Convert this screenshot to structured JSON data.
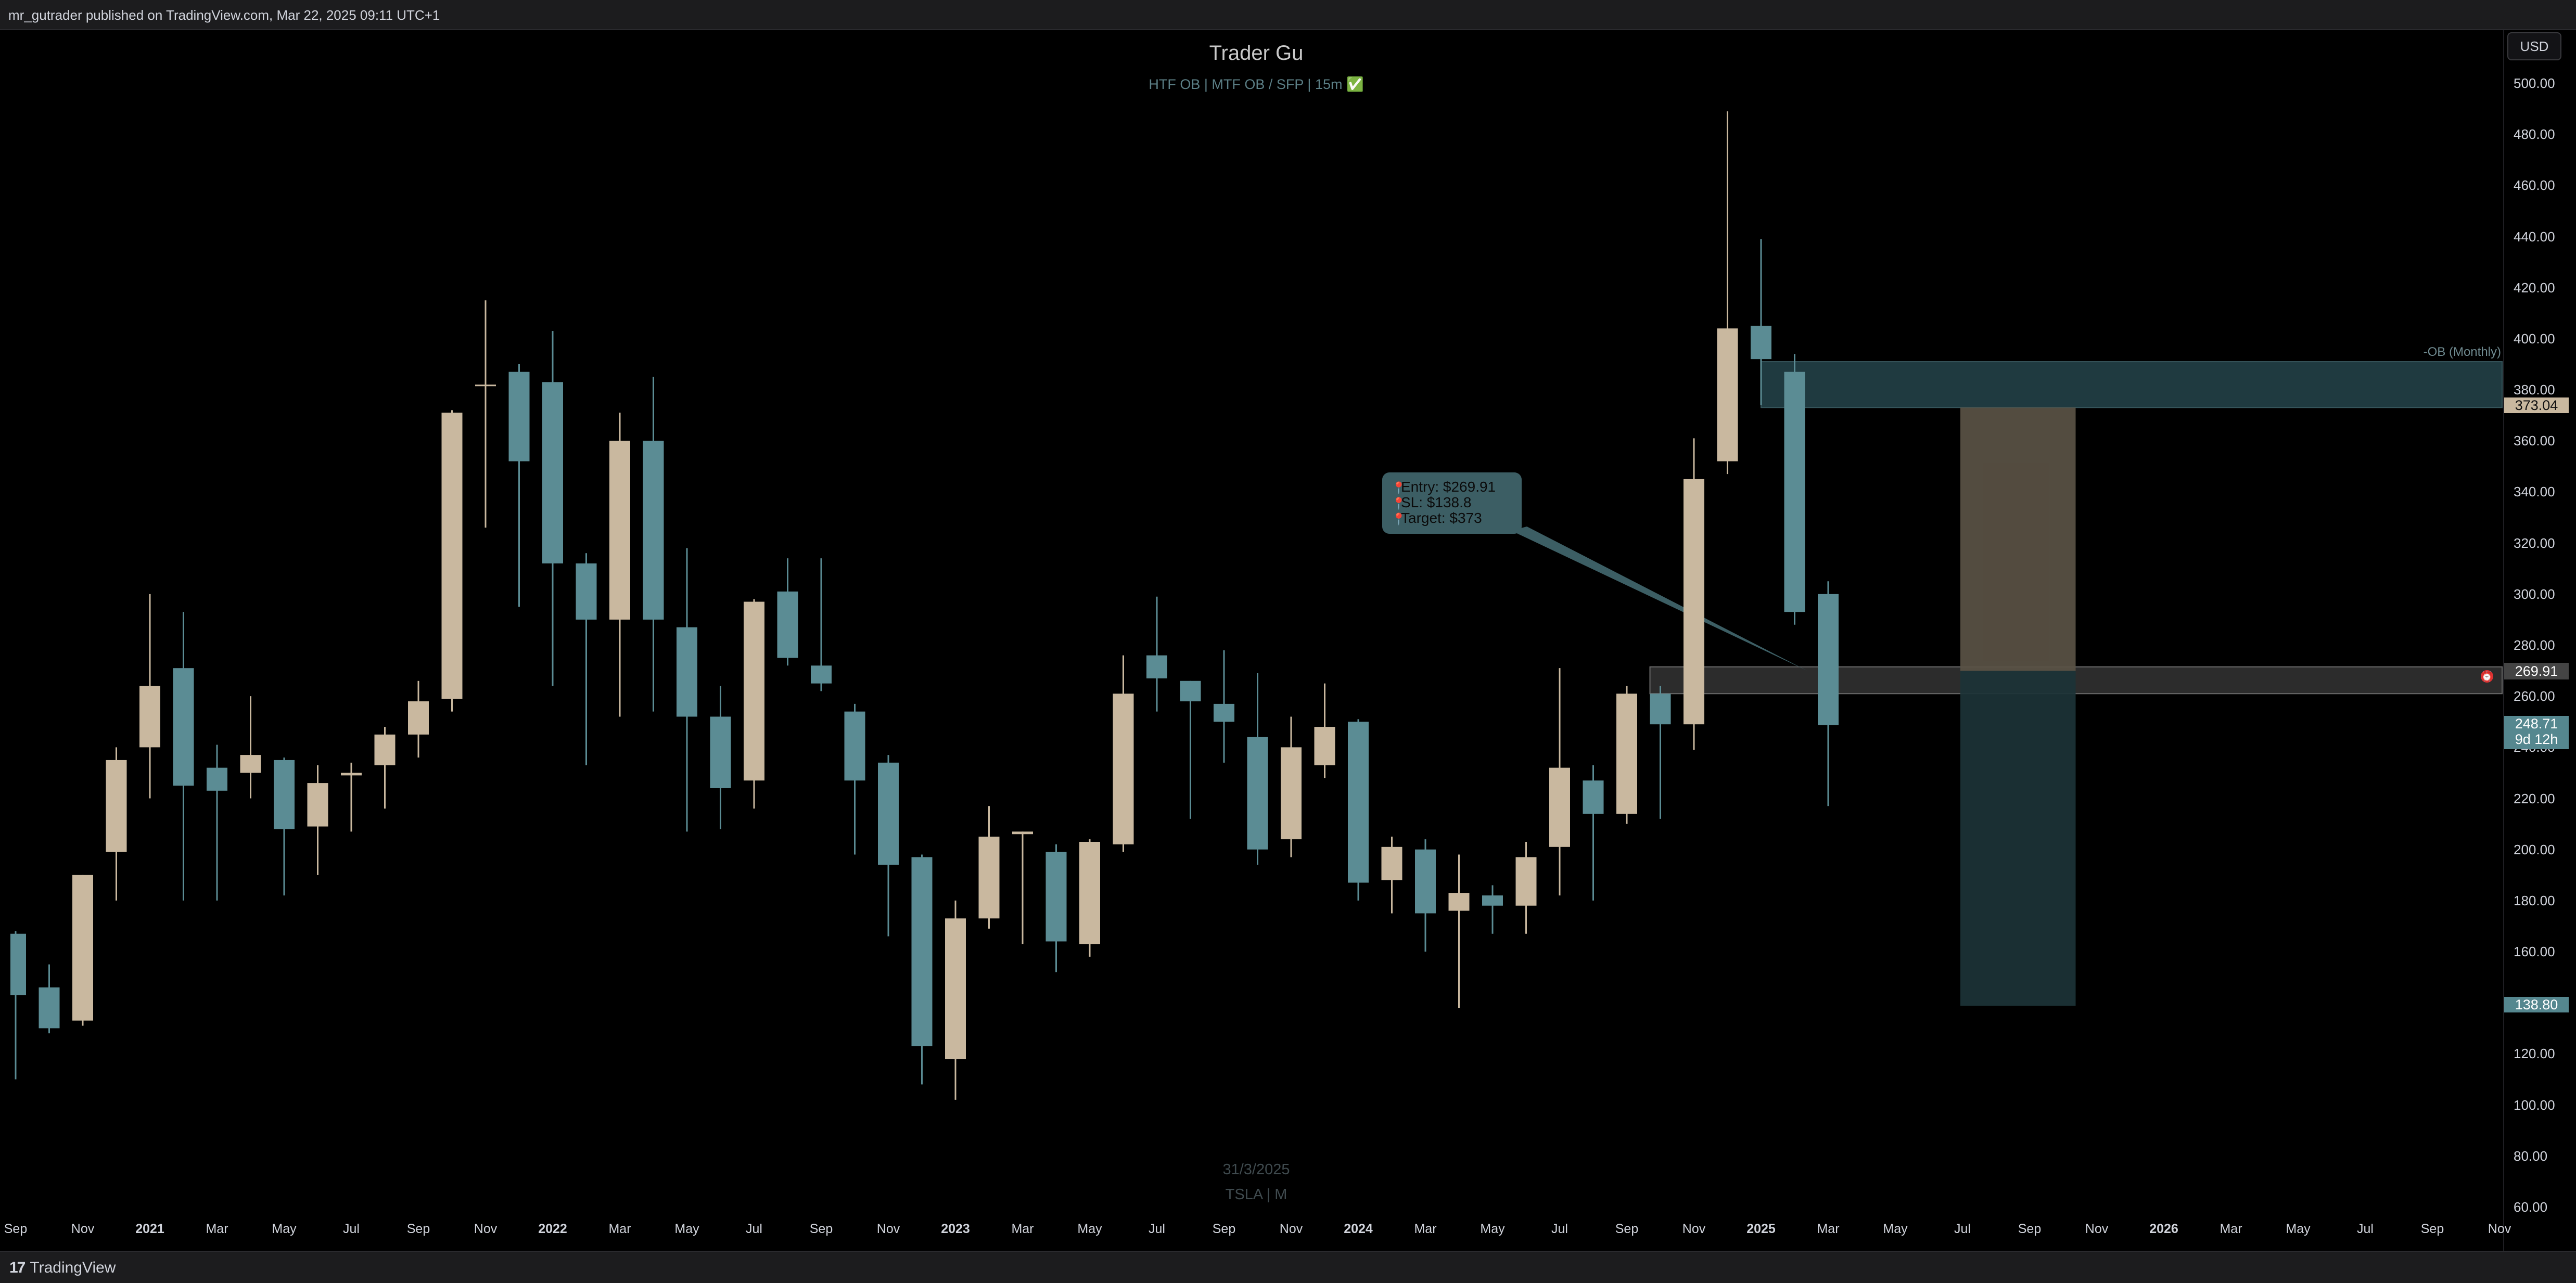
{
  "header": {
    "publisher_text": "mr_gutrader published on TradingView.com, Mar 22, 2025 09:11 UTC+1"
  },
  "footer": {
    "brand": "TradingView",
    "brand_mark": "17"
  },
  "currency_button": "USD",
  "chart_data": {
    "type": "candlestick",
    "title": "Trader Gu",
    "subtitle": "HTF OB  |  MTF OB / SFP  |  15m ✅",
    "symbol_watermark": "TSLA | M",
    "date_watermark": "31/3/2025",
    "price_axis": {
      "ticks": [
        "500.00",
        "480.00",
        "460.00",
        "440.00",
        "420.00",
        "400.00",
        "380.00",
        "360.00",
        "340.00",
        "320.00",
        "300.00",
        "280.00",
        "260.00",
        "240.00",
        "220.00",
        "200.00",
        "180.00",
        "160.00",
        "140.00",
        "120.00",
        "100.00",
        "80.00",
        "60.00"
      ],
      "ylim": [
        55,
        510
      ]
    },
    "time_axis": {
      "labels": [
        {
          "text": "Sep",
          "bold": false
        },
        {
          "text": "Nov",
          "bold": false
        },
        {
          "text": "2021",
          "bold": true
        },
        {
          "text": "Mar",
          "bold": false
        },
        {
          "text": "May",
          "bold": false
        },
        {
          "text": "Jul",
          "bold": false
        },
        {
          "text": "Sep",
          "bold": false
        },
        {
          "text": "Nov",
          "bold": false
        },
        {
          "text": "2022",
          "bold": true
        },
        {
          "text": "Mar",
          "bold": false
        },
        {
          "text": "May",
          "bold": false
        },
        {
          "text": "Jul",
          "bold": false
        },
        {
          "text": "Sep",
          "bold": false
        },
        {
          "text": "Nov",
          "bold": false
        },
        {
          "text": "2023",
          "bold": true
        },
        {
          "text": "Mar",
          "bold": false
        },
        {
          "text": "May",
          "bold": false
        },
        {
          "text": "Jul",
          "bold": false
        },
        {
          "text": "Sep",
          "bold": false
        },
        {
          "text": "Nov",
          "bold": false
        },
        {
          "text": "2024",
          "bold": true
        },
        {
          "text": "Mar",
          "bold": false
        },
        {
          "text": "May",
          "bold": false
        },
        {
          "text": "Jul",
          "bold": false
        },
        {
          "text": "Sep",
          "bold": false
        },
        {
          "text": "Nov",
          "bold": false
        },
        {
          "text": "2025",
          "bold": true
        },
        {
          "text": "Mar",
          "bold": false
        },
        {
          "text": "May",
          "bold": false
        },
        {
          "text": "Jul",
          "bold": false
        },
        {
          "text": "Sep",
          "bold": false
        },
        {
          "text": "Nov",
          "bold": false
        },
        {
          "text": "2026",
          "bold": true
        },
        {
          "text": "Mar",
          "bold": false
        },
        {
          "text": "May",
          "bold": false
        },
        {
          "text": "Jul",
          "bold": false
        },
        {
          "text": "Sep",
          "bold": false
        },
        {
          "text": "Nov",
          "bold": false
        }
      ]
    },
    "candles": [
      {
        "date": "2020-09",
        "open": 167,
        "high": 168,
        "low": 110,
        "close": 143
      },
      {
        "date": "2020-10",
        "open": 146,
        "high": 155,
        "low": 128,
        "close": 130
      },
      {
        "date": "2020-11",
        "open": 133,
        "high": 190,
        "low": 131,
        "close": 190
      },
      {
        "date": "2020-12",
        "open": 199,
        "high": 240,
        "low": 180,
        "close": 235
      },
      {
        "date": "2021-01",
        "open": 240,
        "high": 300,
        "low": 220,
        "close": 264
      },
      {
        "date": "2021-02",
        "open": 271,
        "high": 293,
        "low": 180,
        "close": 225
      },
      {
        "date": "2021-03",
        "open": 232,
        "high": 241,
        "low": 180,
        "close": 223
      },
      {
        "date": "2021-04",
        "open": 230,
        "high": 260,
        "low": 220,
        "close": 237
      },
      {
        "date": "2021-05",
        "open": 235,
        "high": 236,
        "low": 182,
        "close": 208
      },
      {
        "date": "2021-06",
        "open": 209,
        "high": 233,
        "low": 190,
        "close": 226
      },
      {
        "date": "2021-07",
        "open": 229,
        "high": 234,
        "low": 207,
        "close": 230
      },
      {
        "date": "2021-08",
        "open": 233,
        "high": 248,
        "low": 216,
        "close": 245
      },
      {
        "date": "2021-09",
        "open": 245,
        "high": 266,
        "low": 236,
        "close": 258
      },
      {
        "date": "2021-10",
        "open": 259,
        "high": 372,
        "low": 254,
        "close": 371
      },
      {
        "date": "2021-11",
        "open": 382,
        "high": 415,
        "low": 326,
        "close": 382
      },
      {
        "date": "2021-12",
        "open": 387,
        "high": 390,
        "low": 295,
        "close": 352
      },
      {
        "date": "2022-01",
        "open": 383,
        "high": 403,
        "low": 264,
        "close": 312
      },
      {
        "date": "2022-02",
        "open": 312,
        "high": 316,
        "low": 233,
        "close": 290
      },
      {
        "date": "2022-03",
        "open": 290,
        "high": 371,
        "low": 252,
        "close": 360
      },
      {
        "date": "2022-04",
        "open": 360,
        "high": 385,
        "low": 254,
        "close": 290
      },
      {
        "date": "2022-05",
        "open": 287,
        "high": 318,
        "low": 207,
        "close": 252
      },
      {
        "date": "2022-06",
        "open": 252,
        "high": 264,
        "low": 208,
        "close": 224
      },
      {
        "date": "2022-07",
        "open": 227,
        "high": 298,
        "low": 216,
        "close": 297
      },
      {
        "date": "2022-08",
        "open": 301,
        "high": 314,
        "low": 272,
        "close": 275
      },
      {
        "date": "2022-09",
        "open": 272,
        "high": 314,
        "low": 262,
        "close": 265
      },
      {
        "date": "2022-10",
        "open": 254,
        "high": 257,
        "low": 198,
        "close": 227
      },
      {
        "date": "2022-11",
        "open": 234,
        "high": 237,
        "low": 166,
        "close": 194
      },
      {
        "date": "2022-12",
        "open": 197,
        "high": 198,
        "low": 108,
        "close": 123
      },
      {
        "date": "2023-01",
        "open": 118,
        "high": 180,
        "low": 102,
        "close": 173
      },
      {
        "date": "2023-02",
        "open": 173,
        "high": 217,
        "low": 169,
        "close": 205
      },
      {
        "date": "2023-03",
        "open": 206,
        "high": 207,
        "low": 163,
        "close": 207
      },
      {
        "date": "2023-04",
        "open": 199,
        "high": 202,
        "low": 152,
        "close": 164
      },
      {
        "date": "2023-05",
        "open": 163,
        "high": 204,
        "low": 158,
        "close": 203
      },
      {
        "date": "2023-06",
        "open": 202,
        "high": 276,
        "low": 199,
        "close": 261
      },
      {
        "date": "2023-07",
        "open": 276,
        "high": 299,
        "low": 254,
        "close": 267
      },
      {
        "date": "2023-08",
        "open": 266,
        "high": 266,
        "low": 212,
        "close": 258
      },
      {
        "date": "2023-09",
        "open": 257,
        "high": 278,
        "low": 234,
        "close": 250
      },
      {
        "date": "2023-10",
        "open": 244,
        "high": 269,
        "low": 194,
        "close": 200
      },
      {
        "date": "2023-11",
        "open": 204,
        "high": 252,
        "low": 197,
        "close": 240
      },
      {
        "date": "2023-12",
        "open": 233,
        "high": 265,
        "low": 228,
        "close": 248
      },
      {
        "date": "2024-01",
        "open": 250,
        "high": 251,
        "low": 180,
        "close": 187
      },
      {
        "date": "2024-02",
        "open": 188,
        "high": 205,
        "low": 175,
        "close": 201
      },
      {
        "date": "2024-03",
        "open": 200,
        "high": 204,
        "low": 160,
        "close": 175
      },
      {
        "date": "2024-04",
        "open": 176,
        "high": 198,
        "low": 138,
        "close": 183
      },
      {
        "date": "2024-05",
        "open": 182,
        "high": 186,
        "low": 167,
        "close": 178
      },
      {
        "date": "2024-06",
        "open": 178,
        "high": 203,
        "low": 167,
        "close": 197
      },
      {
        "date": "2024-07",
        "open": 201,
        "high": 271,
        "low": 182,
        "close": 232
      },
      {
        "date": "2024-08",
        "open": 227,
        "high": 233,
        "low": 180,
        "close": 214
      },
      {
        "date": "2024-09",
        "open": 214,
        "high": 264,
        "low": 210,
        "close": 261
      },
      {
        "date": "2024-10",
        "open": 261,
        "high": 264,
        "low": 212,
        "close": 249
      },
      {
        "date": "2024-11",
        "open": 249,
        "high": 361,
        "low": 239,
        "close": 345
      },
      {
        "date": "2024-12",
        "open": 352,
        "high": 489,
        "low": 347,
        "close": 404
      },
      {
        "date": "2025-01",
        "open": 405,
        "high": 439,
        "low": 374,
        "close": 392
      },
      {
        "date": "2025-02",
        "open": 387,
        "high": 394,
        "low": 288,
        "close": 293
      },
      {
        "date": "2025-03",
        "open": 300,
        "high": 305,
        "low": 217,
        "close": 248.71
      }
    ],
    "ob_zone": {
      "label": "-OB (Monthly)",
      "top": 391,
      "bottom": 373.04
    },
    "entry_zone": {
      "top": 271.5,
      "bottom": 261
    },
    "position": {
      "entry": 269.91,
      "target": 373.04,
      "stop": 138.8,
      "start_date": "2025-07",
      "end_date": "2025-10"
    },
    "callout": {
      "lines": [
        "Entry: $269.91",
        "SL: $138.8",
        "Target: $373"
      ],
      "pointer_to": {
        "date": "2025-02",
        "price": 270
      }
    },
    "price_tags": [
      {
        "value": "373.04",
        "style": "tan"
      },
      {
        "value": "269.91",
        "style": "grey"
      },
      {
        "value": "248.71",
        "sub": "9d 12h",
        "style": "green"
      },
      {
        "value": "138.80",
        "style": "green"
      }
    ],
    "colors": {
      "bull": "#c9b89f",
      "bear": "#5b8c94",
      "ob": "#1f3a40",
      "entry_zone": "#3b3b3b",
      "target_box": "#5a5245",
      "stop_box": "#1c3337",
      "callout": "#3c5e64"
    }
  }
}
